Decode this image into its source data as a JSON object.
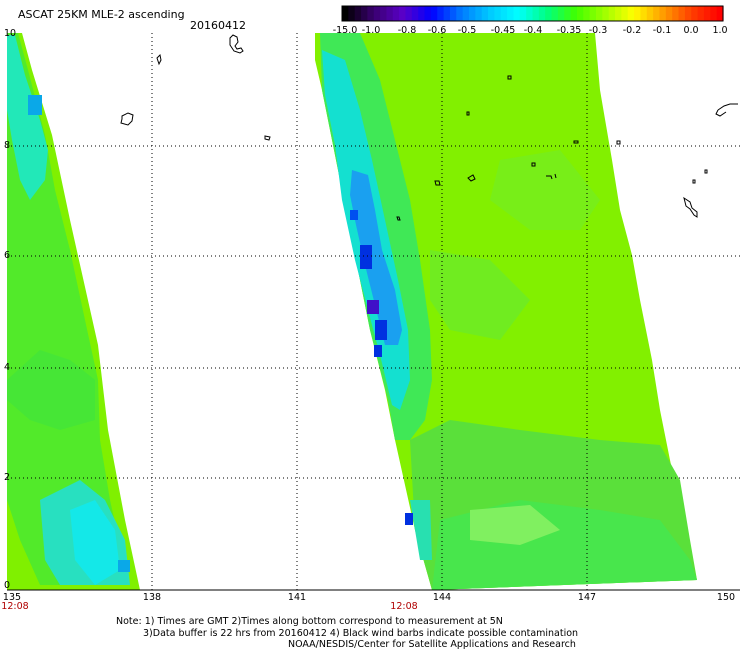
{
  "header": {
    "title": "ASCAT 25KM MLE-2 ascending",
    "date": "20160412"
  },
  "colorbar": {
    "labels": [
      "-15.0",
      "-1.0",
      "-0.8",
      "-0.6",
      "-0.5",
      "-0.45",
      "-0.4",
      "-0.35",
      "-0.3",
      "-0.2",
      "-0.1",
      "0.0",
      "1.0"
    ],
    "colors": [
      "#000000",
      "#3a0070",
      "#5a00c8",
      "#0000ff",
      "#0078ff",
      "#00c8ff",
      "#00ffff",
      "#00ff80",
      "#40ff00",
      "#a0ff00",
      "#ffff00",
      "#ffa000",
      "#ff4000",
      "#ff0000"
    ]
  },
  "axes": {
    "yticks": [
      "10",
      "8",
      "6",
      "4",
      "2",
      "0"
    ],
    "xticks": [
      "135",
      "138",
      "141",
      "144",
      "147",
      "150"
    ],
    "times": [
      "12:08",
      "12:08"
    ]
  },
  "notes": {
    "line1": "Note: 1) Times are GMT 2)Times along bottom correspond to measurement at 5N",
    "line2": "3)Data buffer is 22 hrs from 20160412 4) Black wind barbs indicate possible contamination",
    "line3": "NOAA/NESDIS/Center for Satellite Applications and Research"
  }
}
